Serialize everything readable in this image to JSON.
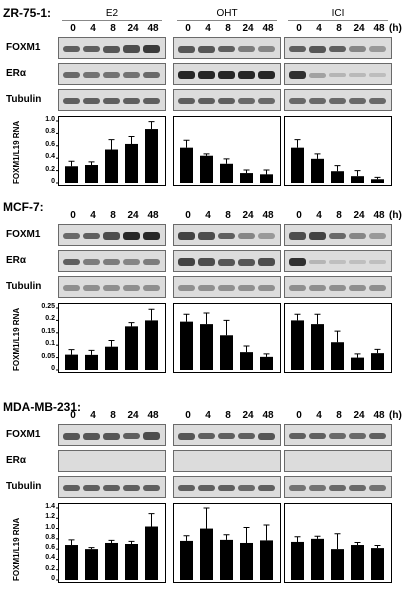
{
  "figure": {
    "conditions": [
      "E2",
      "OHT",
      "ICI"
    ],
    "time_unit": "(h)",
    "timepoints": [
      "0",
      "4",
      "8",
      "24",
      "48"
    ],
    "blot_labels": [
      "FOXM1",
      "ERα",
      "Tubulin"
    ],
    "y_axis_label": "FOXM1/L19 RNA"
  },
  "panels": [
    {
      "cell_line": "ZR-75-1:",
      "show_time_row": false,
      "blots": {
        "FOXM1": [
          [
            0.55,
            0.55,
            0.6,
            0.65,
            0.75
          ],
          [
            0.6,
            0.6,
            0.55,
            0.4,
            0.35
          ],
          [
            0.55,
            0.6,
            0.55,
            0.35,
            0.25
          ]
        ],
        "ERα": [
          [
            0.5,
            0.45,
            0.45,
            0.45,
            0.5
          ],
          [
            0.85,
            0.85,
            0.85,
            0.85,
            0.85
          ],
          [
            0.8,
            0.2,
            0.1,
            0.08,
            0.06
          ]
        ],
        "Tubulin": [
          [
            0.55,
            0.55,
            0.55,
            0.55,
            0.55
          ],
          [
            0.55,
            0.55,
            0.55,
            0.5,
            0.5
          ],
          [
            0.5,
            0.5,
            0.5,
            0.5,
            0.5
          ]
        ]
      },
      "y_ticks": [
        "0",
        "0.2",
        "0.4",
        "0.6",
        "0.8",
        "1.0"
      ]
    },
    {
      "cell_line": "MCF-7:",
      "show_time_row": true,
      "blots": {
        "FOXM1": [
          [
            0.5,
            0.55,
            0.65,
            0.85,
            0.85
          ],
          [
            0.7,
            0.65,
            0.55,
            0.35,
            0.25
          ],
          [
            0.65,
            0.7,
            0.5,
            0.35,
            0.25
          ]
        ],
        "ERα": [
          [
            0.55,
            0.4,
            0.4,
            0.35,
            0.4
          ],
          [
            0.7,
            0.65,
            0.6,
            0.6,
            0.65
          ],
          [
            0.8,
            0.1,
            0.05,
            0.05,
            0.05
          ]
        ],
        "Tubulin": [
          [
            0.3,
            0.3,
            0.3,
            0.3,
            0.3
          ],
          [
            0.3,
            0.3,
            0.3,
            0.3,
            0.3
          ],
          [
            0.3,
            0.3,
            0.3,
            0.3,
            0.3
          ]
        ]
      },
      "y_ticks": [
        "0",
        "0.05",
        "0.1",
        "0.15",
        "0.2",
        "0.25"
      ]
    },
    {
      "cell_line": "MDA-MB-231:",
      "show_time_row": true,
      "blots": {
        "FOXM1": [
          [
            0.6,
            0.6,
            0.6,
            0.55,
            0.65
          ],
          [
            0.6,
            0.55,
            0.55,
            0.55,
            0.6
          ],
          [
            0.55,
            0.55,
            0.5,
            0.5,
            0.55
          ]
        ],
        "ERα": [
          [
            0.0,
            0.0,
            0.0,
            0.0,
            0.0
          ],
          [
            0.0,
            0.0,
            0.0,
            0.0,
            0.0
          ],
          [
            0.0,
            0.0,
            0.0,
            0.0,
            0.0
          ]
        ],
        "Tubulin": [
          [
            0.55,
            0.55,
            0.55,
            0.55,
            0.55
          ],
          [
            0.55,
            0.55,
            0.55,
            0.5,
            0.55
          ],
          [
            0.45,
            0.45,
            0.5,
            0.5,
            0.45
          ]
        ]
      },
      "y_ticks": [
        "0",
        "0.2",
        "0.4",
        "0.6",
        "0.8",
        "1.0",
        "1.2",
        "1.4"
      ]
    }
  ],
  "chart_data": [
    {
      "type": "bar",
      "cell_line": "ZR-75-1",
      "categories": [
        "0",
        "4",
        "8",
        "24",
        "48"
      ],
      "ylabel": "FOXM1/L19 RNA",
      "ylim": [
        0,
        1.0
      ],
      "series": [
        {
          "name": "E2",
          "values": [
            0.27,
            0.29,
            0.54,
            0.63,
            0.87
          ],
          "errors": [
            0.08,
            0.05,
            0.16,
            0.12,
            0.12
          ]
        },
        {
          "name": "OHT",
          "values": [
            0.57,
            0.44,
            0.31,
            0.16,
            0.14
          ],
          "errors": [
            0.12,
            0.03,
            0.08,
            0.05,
            0.07
          ]
        },
        {
          "name": "ICI",
          "values": [
            0.57,
            0.39,
            0.19,
            0.11,
            0.06
          ],
          "errors": [
            0.13,
            0.08,
            0.09,
            0.09,
            0.03
          ]
        }
      ]
    },
    {
      "type": "bar",
      "cell_line": "MCF-7",
      "categories": [
        "0",
        "4",
        "8",
        "24",
        "48"
      ],
      "ylabel": "FOXM1/L19 RNA",
      "ylim": [
        0,
        0.25
      ],
      "series": [
        {
          "name": "E2",
          "values": [
            0.062,
            0.061,
            0.094,
            0.176,
            0.2
          ],
          "errors": [
            0.02,
            0.018,
            0.025,
            0.015,
            0.045
          ]
        },
        {
          "name": "OHT",
          "values": [
            0.195,
            0.185,
            0.14,
            0.072,
            0.053
          ],
          "errors": [
            0.03,
            0.045,
            0.06,
            0.025,
            0.012
          ]
        },
        {
          "name": "ICI",
          "values": [
            0.2,
            0.185,
            0.112,
            0.05,
            0.068
          ],
          "errors": [
            0.025,
            0.04,
            0.045,
            0.015,
            0.015
          ]
        }
      ]
    },
    {
      "type": "bar",
      "cell_line": "MDA-MB-231",
      "categories": [
        "0",
        "4",
        "8",
        "24",
        "48"
      ],
      "ylabel": "FOXM1/L19 RNA",
      "ylim": [
        0,
        1.4
      ],
      "series": [
        {
          "name": "E2",
          "values": [
            0.68,
            0.6,
            0.72,
            0.7,
            1.04
          ],
          "errors": [
            0.1,
            0.03,
            0.05,
            0.05,
            0.25
          ]
        },
        {
          "name": "OHT",
          "values": [
            0.76,
            1.0,
            0.78,
            0.72,
            0.77
          ],
          "errors": [
            0.1,
            0.4,
            0.1,
            0.3,
            0.3
          ]
        },
        {
          "name": "ICI",
          "values": [
            0.74,
            0.8,
            0.6,
            0.68,
            0.62
          ],
          "errors": [
            0.1,
            0.05,
            0.3,
            0.05,
            0.05
          ]
        }
      ]
    }
  ]
}
